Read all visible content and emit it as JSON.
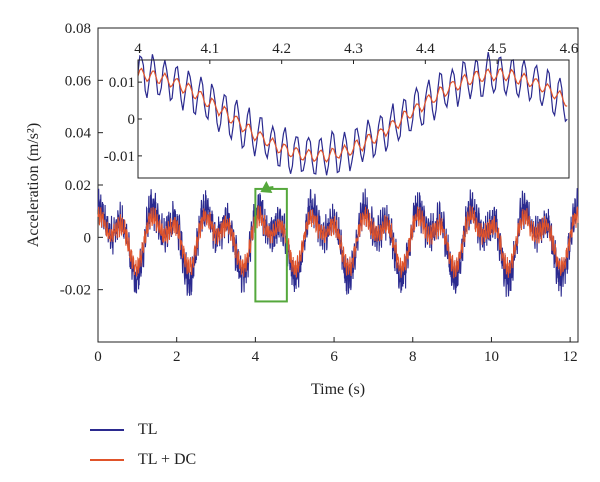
{
  "chart_data": {
    "type": "line",
    "xlabel": "Time (s)",
    "ylabel": "Acceleration (m/s²)",
    "xlim": [
      0,
      12.2
    ],
    "ylim": [
      -0.04,
      0.08
    ],
    "x_ticks": [
      "0",
      "2",
      "4",
      "6",
      "8",
      "10",
      "12"
    ],
    "y_ticks": [
      "-0.02",
      "0",
      "0.02",
      "0.04",
      "0.06",
      "0.08"
    ],
    "series": [
      {
        "name": "TL",
        "color": "#2b2a8f",
        "amplitude": 0.016,
        "noise": 0.005
      },
      {
        "name": "TL + DC",
        "color": "#e0532a",
        "amplitude": 0.012,
        "noise": 0.002
      }
    ],
    "highlight_box": {
      "x": [
        4.0,
        4.8
      ],
      "y": [
        -0.0245,
        0.0185
      ],
      "color": "#55a83c"
    },
    "inset": {
      "xlim": [
        4.0,
        4.6
      ],
      "ylim": [
        -0.016,
        0.016
      ],
      "x_ticks": [
        "4",
        "4.1",
        "4.2",
        "4.3",
        "4.4",
        "4.5",
        "4.6"
      ],
      "y_ticks": [
        "-0.01",
        "0",
        "0.01"
      ]
    }
  }
}
